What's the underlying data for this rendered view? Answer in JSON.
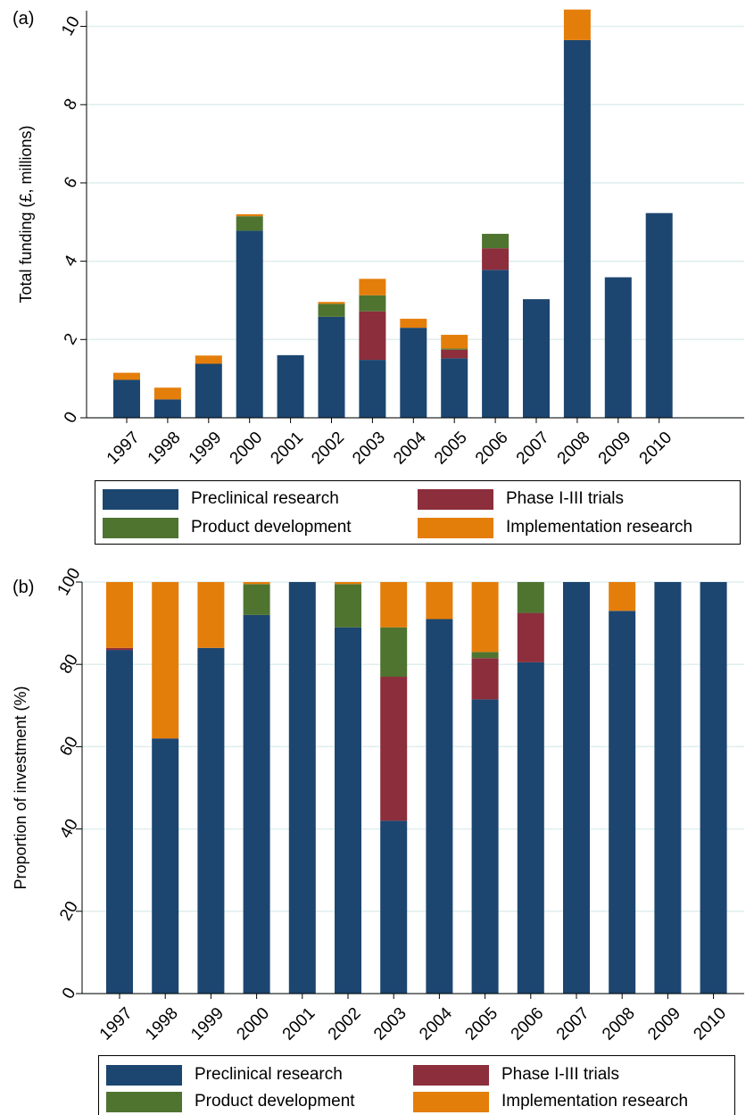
{
  "colors": {
    "preclinical": "#1c4670",
    "phase": "#8c2e3c",
    "product": "#4e7430",
    "implementation": "#e47e0a",
    "grid": "#dfeeee"
  },
  "chart_data": [
    {
      "panel_label": "(a)",
      "type": "bar",
      "stacked": true,
      "ylabel": "Total funding (£, millions)",
      "ylim": [
        0,
        10.4
      ],
      "yticks": [
        "0",
        "2",
        "4",
        "6",
        "8",
        "10"
      ],
      "ytick_values": [
        0,
        2,
        4,
        6,
        8,
        10
      ],
      "grid": true,
      "categories": [
        "1997",
        "1998",
        "1999",
        "2000",
        "2001",
        "2002",
        "2003",
        "2004",
        "2005",
        "2006",
        "2007",
        "2008",
        "2009",
        "2010"
      ],
      "series": [
        {
          "name": "Preclinical research",
          "color_key": "preclinical",
          "values": [
            0.97,
            0.47,
            1.38,
            4.78,
            1.6,
            2.58,
            1.48,
            2.3,
            1.52,
            3.78,
            3.03,
            9.65,
            3.59,
            5.23
          ]
        },
        {
          "name": "Phase I-III trials",
          "color_key": "phase",
          "values": [
            0,
            0,
            0,
            0,
            0,
            0,
            1.24,
            0,
            0.22,
            0.55,
            0,
            0,
            0,
            0
          ]
        },
        {
          "name": "Product development",
          "color_key": "product",
          "values": [
            0,
            0,
            0,
            0.37,
            0,
            0.33,
            0.41,
            0,
            0.03,
            0.37,
            0,
            0,
            0,
            0
          ]
        },
        {
          "name": "Implementation research",
          "color_key": "implementation",
          "values": [
            0.18,
            0.3,
            0.21,
            0.05,
            0,
            0.05,
            0.42,
            0.23,
            0.35,
            0,
            0,
            0.78,
            0,
            0
          ]
        }
      ],
      "legend": {
        "placement": "bottom",
        "entries": [
          {
            "label": "Preclinical research",
            "color_key": "preclinical"
          },
          {
            "label": "Phase I-III trials",
            "color_key": "phase"
          },
          {
            "label": "Product development",
            "color_key": "product"
          },
          {
            "label": "Implementation research",
            "color_key": "implementation"
          }
        ]
      }
    },
    {
      "panel_label": "(b)",
      "type": "bar",
      "stacked": true,
      "ylabel": "Proportion of investment (%)",
      "ylim": [
        0,
        100
      ],
      "yticks": [
        "0",
        "20",
        "40",
        "60",
        "80",
        "100"
      ],
      "ytick_values": [
        0,
        20,
        40,
        60,
        80,
        100
      ],
      "grid": true,
      "categories": [
        "1997",
        "1998",
        "1999",
        "2000",
        "2001",
        "2002",
        "2003",
        "2004",
        "2005",
        "2006",
        "2007",
        "2008",
        "2009",
        "2010"
      ],
      "series": [
        {
          "name": "Preclinical research",
          "color_key": "preclinical",
          "values": [
            83.5,
            62,
            84,
            92,
            100,
            89,
            42,
            91,
            71.5,
            80.5,
            100,
            93,
            100,
            100
          ]
        },
        {
          "name": "Phase I-III trials",
          "color_key": "phase",
          "values": [
            0.5,
            0,
            0,
            0,
            0,
            0,
            35,
            0,
            10,
            12,
            0,
            0,
            0,
            0
          ]
        },
        {
          "name": "Product development",
          "color_key": "product",
          "values": [
            0,
            0,
            0,
            7.5,
            0,
            10.5,
            12,
            0,
            1.5,
            7.5,
            0,
            0,
            0,
            0
          ]
        },
        {
          "name": "Implementation research",
          "color_key": "implementation",
          "values": [
            16,
            38,
            16,
            0.5,
            0,
            0.5,
            11,
            9,
            17,
            0,
            0,
            7,
            0,
            0
          ]
        }
      ],
      "legend": {
        "placement": "bottom",
        "entries": [
          {
            "label": "Preclinical research",
            "color_key": "preclinical"
          },
          {
            "label": "Phase I-III trials",
            "color_key": "phase"
          },
          {
            "label": "Product development",
            "color_key": "product"
          },
          {
            "label": "Implementation research",
            "color_key": "implementation"
          }
        ]
      }
    }
  ]
}
